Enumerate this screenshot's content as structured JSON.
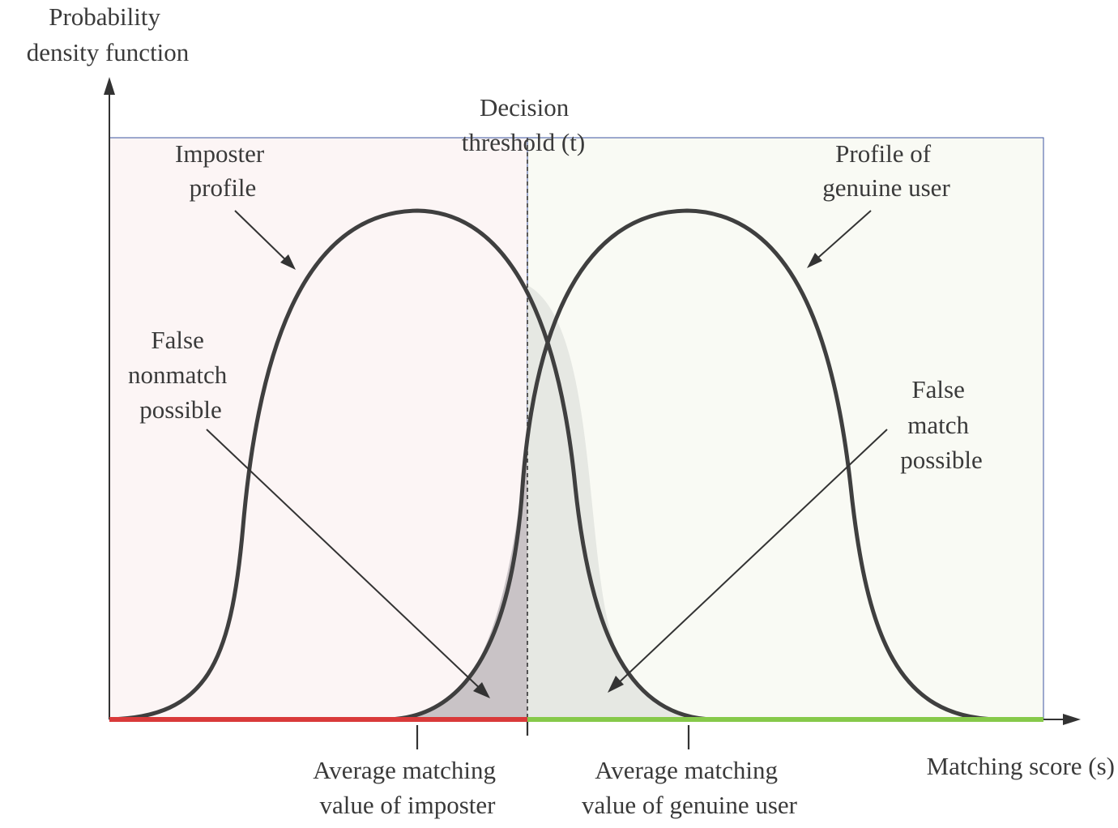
{
  "y_axis_label": [
    "Probability",
    "density function"
  ],
  "x_axis_label": "Matching score (s)",
  "threshold_label": [
    "Decision",
    "threshold (t)"
  ],
  "imposter_label": [
    "Imposter",
    "profile"
  ],
  "genuine_label": [
    "Profile of",
    "genuine user"
  ],
  "false_nonmatch_label": [
    "False",
    "nonmatch",
    "possible"
  ],
  "false_match_label": [
    "False",
    "match",
    "possible"
  ],
  "avg_imposter_label": [
    "Average matching",
    "value of imposter"
  ],
  "avg_genuine_label": [
    "Average matching",
    "value of genuine user"
  ],
  "colors": {
    "imposter_region": "#fcf5f5",
    "genuine_region": "#f9faf4",
    "reject_bar": "#d93a3a",
    "accept_bar": "#86c94a",
    "overlap_dark": "#c9c3c6",
    "overlap_light": "#e6e8e3",
    "curve": "#3f3f3f"
  }
}
